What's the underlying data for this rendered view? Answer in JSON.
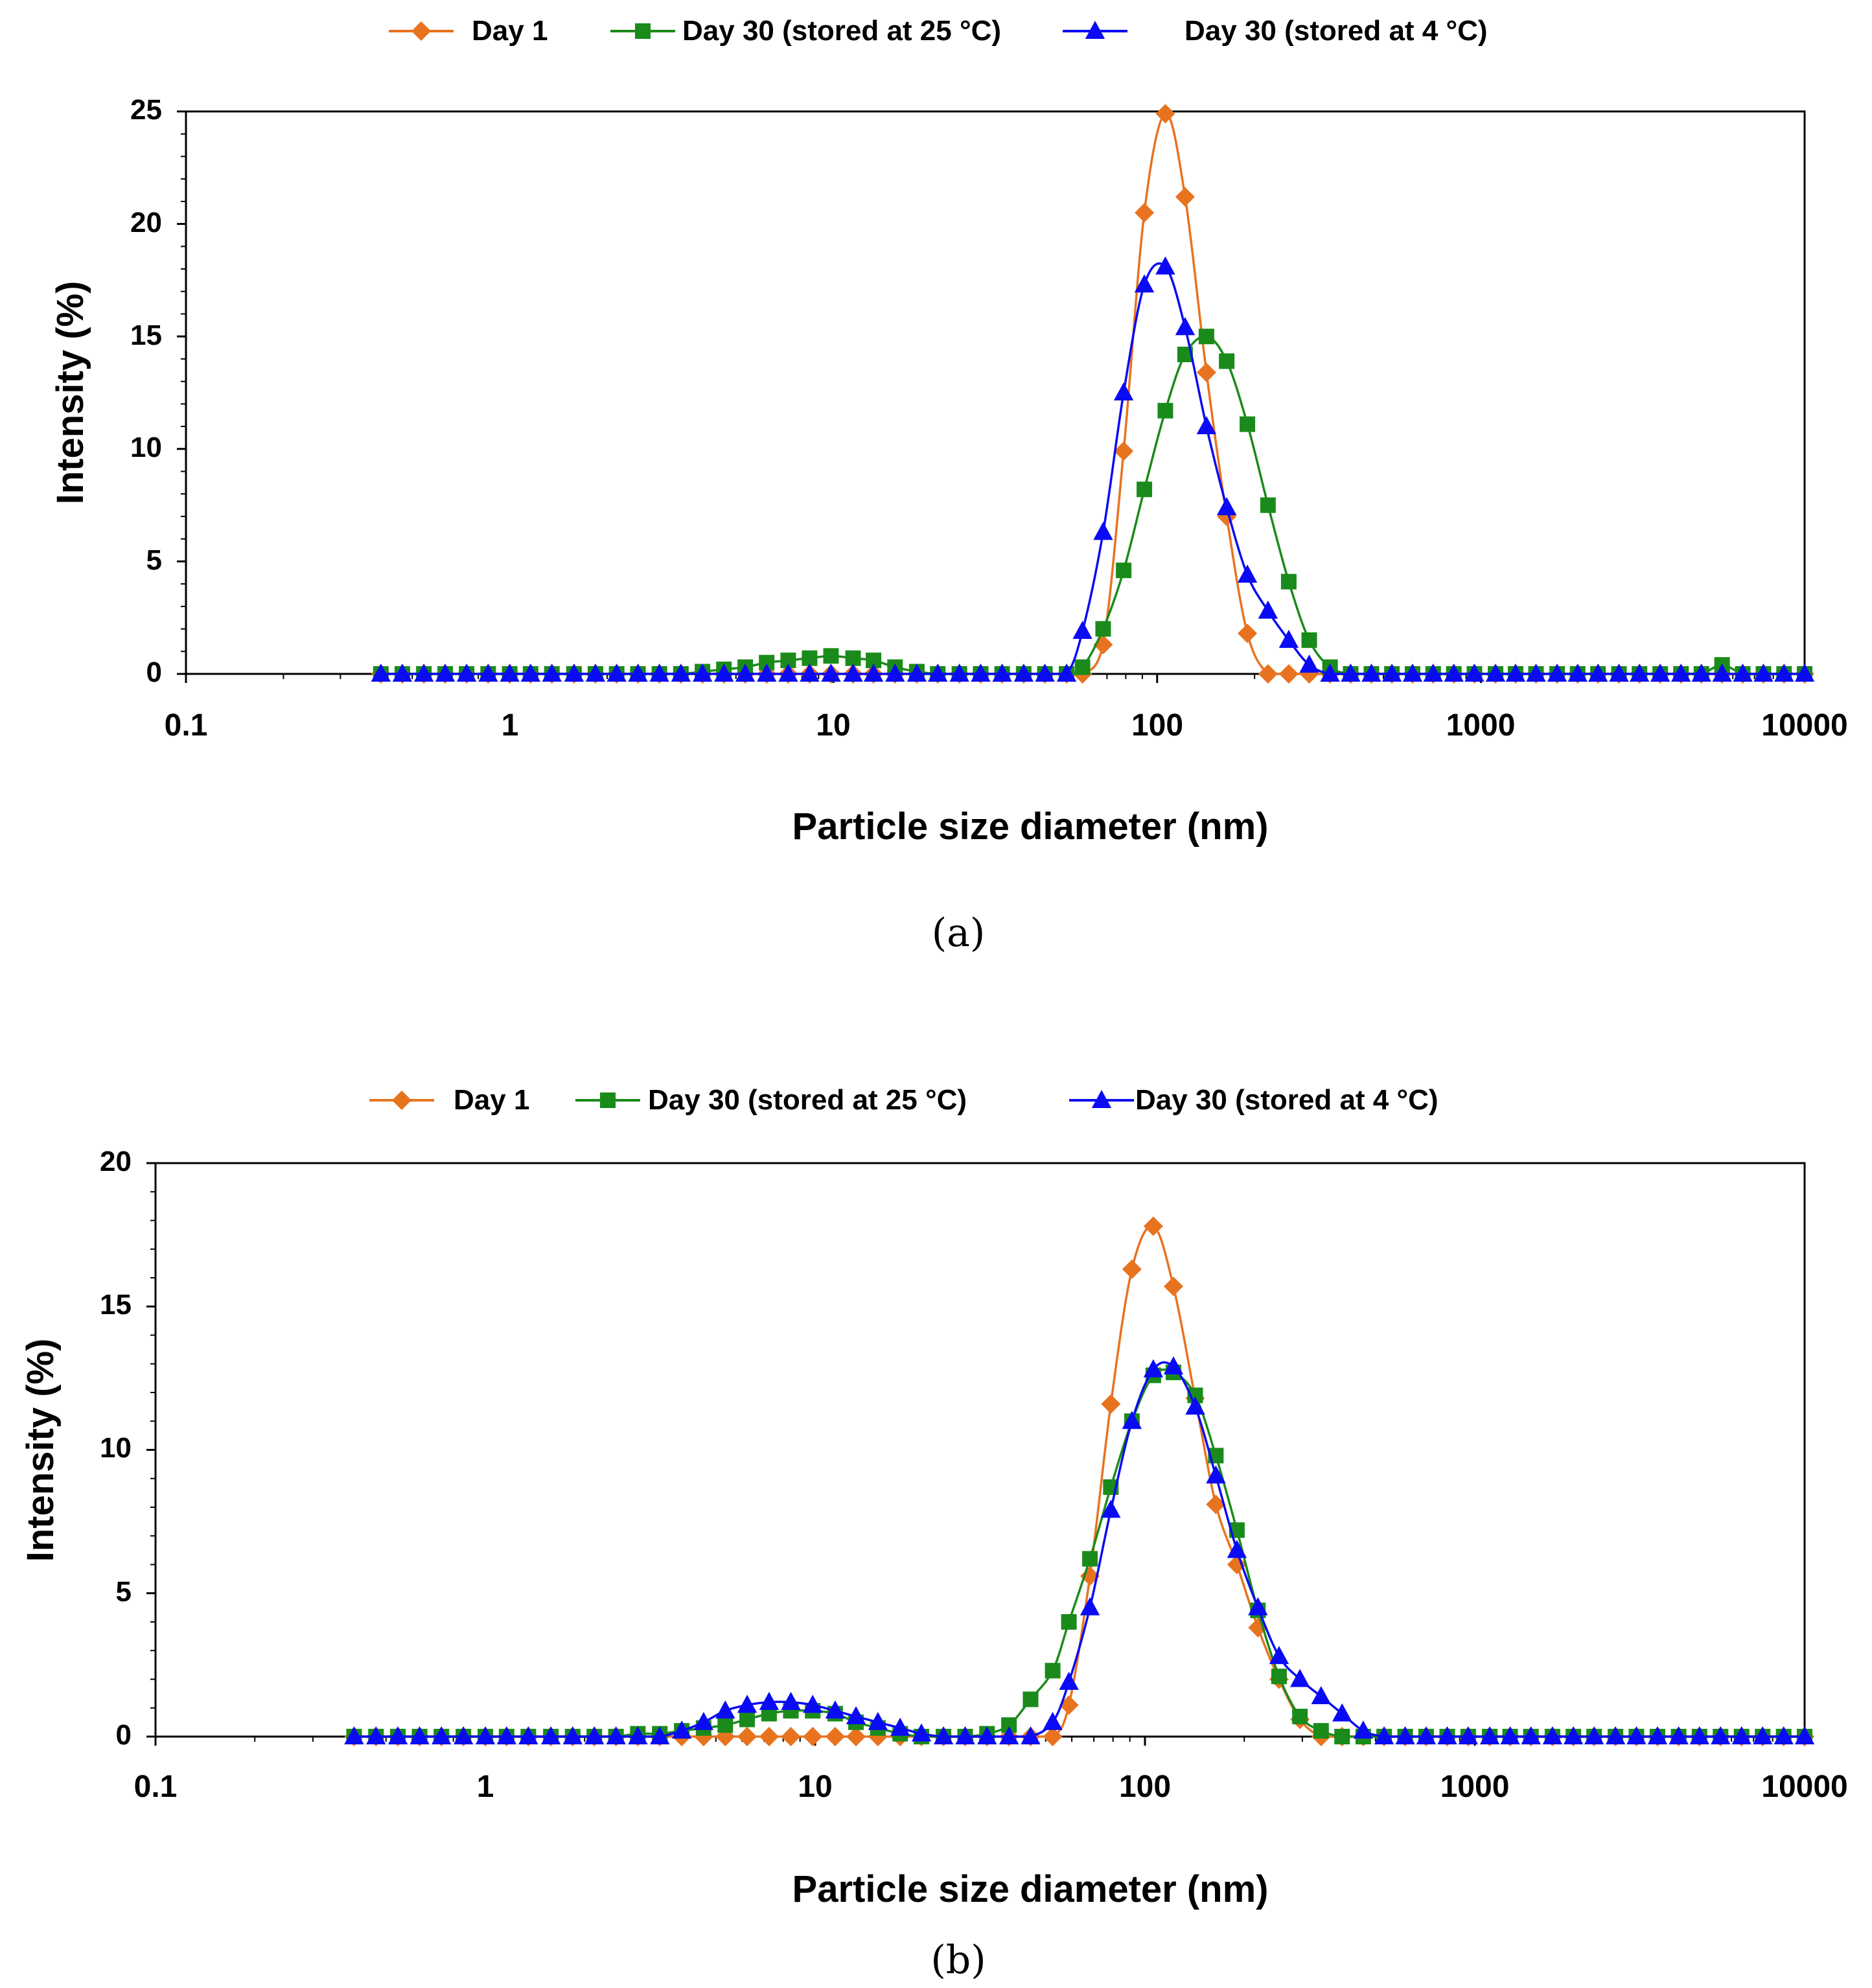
{
  "figure": {
    "colors": {
      "day1": "#E8731F",
      "day30_25": "#1A8B1A",
      "day30_4": "#0A0AF5",
      "axis": "#000000"
    }
  },
  "chart_data": [
    {
      "type": "line",
      "panel_label": "(a)",
      "xscale": "log",
      "xlim": [
        0.1,
        10000
      ],
      "ylim": [
        0,
        25
      ],
      "xticks": [
        "0.1",
        "1",
        "10",
        "100",
        "1000",
        "10000"
      ],
      "yticks": [
        "0",
        "5",
        "10",
        "15",
        "20",
        "25"
      ],
      "xlabel": "Particle size diameter (nm)",
      "ylabel": "Intensity (%)",
      "legend_position": "top-center",
      "series": [
        {
          "name": "Day 1",
          "marker": "diamond",
          "color": "#E8731F",
          "x": [
            0.4,
            0.466,
            0.543,
            0.632,
            0.736,
            0.858,
            1.0,
            1.16,
            1.35,
            1.58,
            1.84,
            2.14,
            2.49,
            2.9,
            3.38,
            3.94,
            4.59,
            5.34,
            6.22,
            7.25,
            8.44,
            9.83,
            11.5,
            13.3,
            15.5,
            18.1,
            21.0,
            24.5,
            28.5,
            33.2,
            38.7,
            45.0,
            52.5,
            58.8,
            68.1,
            78.8,
            91.3,
            106,
            122,
            142,
            164,
            190,
            220,
            255,
            295,
            342,
            396,
            459,
            531,
            615,
            712,
            825,
            955,
            1110,
            1280,
            1480,
            1720,
            1990,
            2300,
            2670,
            3090,
            3580,
            4150,
            4800,
            5560,
            6440,
            7460,
            8640,
            10000
          ],
          "y": [
            0,
            0,
            0,
            0,
            0,
            0,
            0,
            0,
            0,
            0,
            0,
            0,
            0,
            0,
            0,
            0,
            0,
            0,
            0,
            0,
            0,
            0,
            0,
            0,
            0,
            0,
            0,
            0,
            0,
            0,
            0,
            0,
            0,
            0,
            1.3,
            9.9,
            20.5,
            24.9,
            21.2,
            13.4,
            7.0,
            1.8,
            0,
            0,
            0,
            0,
            0,
            0,
            0,
            0,
            0,
            0,
            0,
            0,
            0,
            0,
            0,
            0,
            0,
            0,
            0,
            0,
            0,
            0,
            0,
            0,
            0,
            0,
            0
          ]
        },
        {
          "name": "Day 30 (stored at 25 °C)",
          "marker": "square",
          "color": "#1A8B1A",
          "x": [
            0.4,
            0.466,
            0.543,
            0.632,
            0.736,
            0.858,
            1.0,
            1.16,
            1.35,
            1.58,
            1.84,
            2.14,
            2.49,
            2.9,
            3.38,
            3.94,
            4.59,
            5.34,
            6.22,
            7.25,
            8.44,
            9.83,
            11.5,
            13.3,
            15.5,
            18.1,
            21.0,
            24.5,
            28.5,
            33.2,
            38.7,
            45.0,
            52.5,
            58.8,
            68.1,
            78.8,
            91.3,
            106,
            122,
            142,
            164,
            190,
            220,
            255,
            295,
            342,
            396,
            459,
            531,
            615,
            712,
            825,
            955,
            1110,
            1280,
            1480,
            1720,
            1990,
            2300,
            2670,
            3090,
            3580,
            4150,
            4800,
            5560,
            6440,
            7460,
            8640,
            10000
          ],
          "y": [
            0,
            0,
            0,
            0,
            0,
            0,
            0,
            0,
            0,
            0,
            0,
            0,
            0,
            0,
            0,
            0.1,
            0.2,
            0.3,
            0.5,
            0.6,
            0.7,
            0.8,
            0.7,
            0.6,
            0.3,
            0.1,
            0,
            0,
            0,
            0,
            0,
            0,
            0,
            0.3,
            2.0,
            4.6,
            8.2,
            11.7,
            14.2,
            15.0,
            13.9,
            11.1,
            7.5,
            4.1,
            1.5,
            0.3,
            0,
            0,
            0,
            0,
            0,
            0,
            0,
            0,
            0,
            0,
            0,
            0,
            0,
            0,
            0,
            0,
            0,
            0,
            0.4,
            0,
            0,
            0,
            0
          ]
        },
        {
          "name": "Day 30 (stored at 4 °C)",
          "marker": "triangle",
          "color": "#0A0AF5",
          "x": [
            0.4,
            0.466,
            0.543,
            0.632,
            0.736,
            0.858,
            1.0,
            1.16,
            1.35,
            1.58,
            1.84,
            2.14,
            2.49,
            2.9,
            3.38,
            3.94,
            4.59,
            5.34,
            6.22,
            7.25,
            8.44,
            9.83,
            11.5,
            13.3,
            15.5,
            18.1,
            21.0,
            24.5,
            28.5,
            33.2,
            38.7,
            45.0,
            52.5,
            58.8,
            68.1,
            78.8,
            91.3,
            106,
            122,
            142,
            164,
            190,
            220,
            255,
            295,
            342,
            396,
            459,
            531,
            615,
            712,
            825,
            955,
            1110,
            1280,
            1480,
            1720,
            1990,
            2300,
            2670,
            3090,
            3580,
            4150,
            4800,
            5560,
            6440,
            7460,
            8640,
            10000
          ],
          "y": [
            0,
            0,
            0,
            0,
            0,
            0,
            0,
            0,
            0,
            0,
            0,
            0,
            0,
            0,
            0,
            0,
            0,
            0,
            0,
            0,
            0,
            0,
            0,
            0,
            0,
            0,
            0,
            0,
            0,
            0,
            0,
            0,
            0,
            1.9,
            6.3,
            12.5,
            17.3,
            18.1,
            15.4,
            11.0,
            7.4,
            4.4,
            2.8,
            1.5,
            0.4,
            0,
            0,
            0,
            0,
            0,
            0,
            0,
            0,
            0,
            0,
            0,
            0,
            0,
            0,
            0,
            0,
            0,
            0,
            0,
            0,
            0,
            0,
            0,
            0
          ]
        }
      ]
    },
    {
      "type": "line",
      "panel_label": "(b)",
      "xscale": "log",
      "xlim": [
        0.1,
        10000
      ],
      "ylim": [
        0,
        20
      ],
      "xticks": [
        "0.1",
        "1",
        "10",
        "100",
        "1000",
        "10000"
      ],
      "yticks": [
        "0",
        "5",
        "10",
        "15",
        "20"
      ],
      "xlabel": "Particle size diameter (nm)",
      "ylabel": "Intensity (%)",
      "legend_position": "top-center",
      "series": [
        {
          "name": "Day 1",
          "marker": "diamond",
          "color": "#E8731F",
          "x": [
            0.4,
            0.466,
            0.543,
            0.632,
            0.736,
            0.858,
            1.0,
            1.16,
            1.35,
            1.58,
            1.84,
            2.14,
            2.49,
            2.9,
            3.38,
            3.94,
            4.59,
            5.34,
            6.22,
            7.25,
            8.44,
            9.83,
            11.5,
            13.3,
            15.5,
            18.1,
            21.0,
            24.5,
            28.5,
            33.2,
            38.7,
            45.0,
            52.5,
            58.8,
            68.1,
            78.8,
            91.3,
            106,
            122,
            142,
            164,
            190,
            220,
            255,
            295,
            342,
            396,
            459,
            531,
            615,
            712,
            825,
            955,
            1110,
            1280,
            1480,
            1720,
            1990,
            2300,
            2670,
            3090,
            3580,
            4150,
            4800,
            5560,
            6440,
            7460,
            8640,
            10000
          ],
          "y": [
            0,
            0,
            0,
            0,
            0,
            0,
            0,
            0,
            0,
            0,
            0,
            0,
            0,
            0,
            0,
            0,
            0,
            0,
            0,
            0,
            0,
            0,
            0,
            0,
            0,
            0,
            0,
            0,
            0,
            0,
            0,
            0,
            0,
            1.1,
            5.6,
            11.6,
            16.3,
            17.8,
            15.7,
            11.8,
            8.1,
            6.0,
            3.8,
            2.0,
            0.6,
            0,
            0,
            0,
            0,
            0,
            0,
            0,
            0,
            0,
            0,
            0,
            0,
            0,
            0,
            0,
            0,
            0,
            0,
            0,
            0,
            0,
            0,
            0,
            0
          ]
        },
        {
          "name": "Day 30 (stored at 25 °C)",
          "marker": "square",
          "color": "#1A8B1A",
          "x": [
            0.4,
            0.466,
            0.543,
            0.632,
            0.736,
            0.858,
            1.0,
            1.16,
            1.35,
            1.58,
            1.84,
            2.14,
            2.49,
            2.9,
            3.38,
            3.94,
            4.59,
            5.34,
            6.22,
            7.25,
            8.44,
            9.83,
            11.5,
            13.3,
            15.5,
            18.1,
            21.0,
            24.5,
            28.5,
            33.2,
            38.7,
            45.0,
            52.5,
            58.8,
            68.1,
            78.8,
            91.3,
            106,
            122,
            142,
            164,
            190,
            220,
            255,
            295,
            342,
            396,
            459,
            531,
            615,
            712,
            825,
            955,
            1110,
            1280,
            1480,
            1720,
            1990,
            2300,
            2670,
            3090,
            3580,
            4150,
            4800,
            5560,
            6440,
            7460,
            8640,
            10000
          ],
          "y": [
            0,
            0,
            0,
            0,
            0,
            0,
            0,
            0,
            0,
            0,
            0,
            0,
            0,
            0.1,
            0.1,
            0.2,
            0.3,
            0.4,
            0.6,
            0.8,
            0.9,
            0.9,
            0.8,
            0.5,
            0.3,
            0.1,
            0,
            0,
            0,
            0.1,
            0.4,
            1.3,
            2.3,
            4.0,
            6.2,
            8.7,
            11.0,
            12.6,
            12.7,
            11.9,
            9.8,
            7.2,
            4.4,
            2.1,
            0.7,
            0.2,
            0,
            0,
            0,
            0,
            0,
            0,
            0,
            0,
            0,
            0,
            0,
            0,
            0,
            0,
            0,
            0,
            0,
            0,
            0,
            0,
            0,
            0,
            0
          ]
        },
        {
          "name": "Day 30 (stored at 4 °C)",
          "marker": "triangle",
          "color": "#0A0AF5",
          "x": [
            0.4,
            0.466,
            0.543,
            0.632,
            0.736,
            0.858,
            1.0,
            1.16,
            1.35,
            1.58,
            1.84,
            2.14,
            2.49,
            2.9,
            3.38,
            3.94,
            4.59,
            5.34,
            6.22,
            7.25,
            8.44,
            9.83,
            11.5,
            13.3,
            15.5,
            18.1,
            21.0,
            24.5,
            28.5,
            33.2,
            38.7,
            45.0,
            52.5,
            58.8,
            68.1,
            78.8,
            91.3,
            106,
            122,
            142,
            164,
            190,
            220,
            255,
            295,
            342,
            396,
            459,
            531,
            615,
            712,
            825,
            955,
            1110,
            1280,
            1480,
            1720,
            1990,
            2300,
            2670,
            3090,
            3580,
            4150,
            4800,
            5560,
            6440,
            7460,
            8640,
            10000
          ],
          "y": [
            0,
            0,
            0,
            0,
            0,
            0,
            0,
            0,
            0,
            0,
            0,
            0,
            0,
            0,
            0,
            0.2,
            0.5,
            0.9,
            1.1,
            1.2,
            1.2,
            1.1,
            0.9,
            0.7,
            0.5,
            0.3,
            0.1,
            0,
            0,
            0,
            0,
            0,
            0.5,
            1.9,
            4.5,
            7.9,
            11.0,
            12.8,
            12.9,
            11.5,
            9.1,
            6.5,
            4.5,
            2.8,
            2.0,
            1.4,
            0.8,
            0.2,
            0,
            0,
            0,
            0,
            0,
            0,
            0,
            0,
            0,
            0,
            0,
            0,
            0,
            0,
            0,
            0,
            0,
            0,
            0,
            0,
            0
          ]
        }
      ]
    }
  ]
}
